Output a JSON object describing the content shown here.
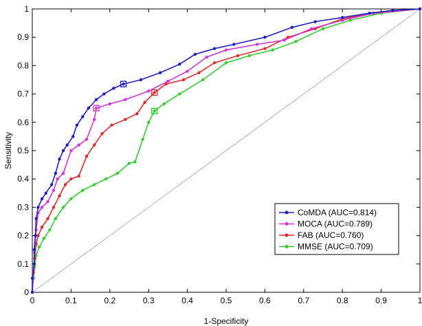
{
  "chart_data": {
    "type": "line",
    "title": "",
    "xlabel": "1-Specificity",
    "ylabel": "Sensitivity",
    "xlim": [
      0,
      1
    ],
    "ylim": [
      0,
      1
    ],
    "xticks": [
      0,
      0.1,
      0.2,
      0.3,
      0.4,
      0.5,
      0.6,
      0.7,
      0.8,
      0.9,
      1
    ],
    "yticks": [
      0,
      0.1,
      0.2,
      0.3,
      0.4,
      0.5,
      0.6,
      0.7,
      0.8,
      0.9,
      1
    ],
    "xtick_labels": [
      "0",
      "0.1",
      "0.2",
      "0.3",
      "0.4",
      "0.5",
      "0.6",
      "0.7",
      "0.8",
      "0.9",
      "1"
    ],
    "ytick_labels": [
      "0",
      "0.1",
      "0.2",
      "0.3",
      "0.4",
      "0.5",
      "0.6",
      "0.7",
      "0.8",
      "0.9",
      "1"
    ],
    "grid": false,
    "legend_position": "bottom-right",
    "reference_line": {
      "from": [
        0,
        0
      ],
      "to": [
        1,
        1
      ],
      "color": "#b0b0b0"
    },
    "series": [
      {
        "name": "CoMDA (AUC=0.814)",
        "color": "#1f1fbf",
        "highlight_point": [
          0.235,
          0.735
        ],
        "points": [
          [
            0,
            0
          ],
          [
            0,
            0.05
          ],
          [
            0.005,
            0.1
          ],
          [
            0.005,
            0.15
          ],
          [
            0.008,
            0.2
          ],
          [
            0.01,
            0.26
          ],
          [
            0.015,
            0.3
          ],
          [
            0.025,
            0.33
          ],
          [
            0.035,
            0.35
          ],
          [
            0.05,
            0.38
          ],
          [
            0.06,
            0.42
          ],
          [
            0.07,
            0.47
          ],
          [
            0.08,
            0.5
          ],
          [
            0.09,
            0.52
          ],
          [
            0.105,
            0.55
          ],
          [
            0.115,
            0.59
          ],
          [
            0.13,
            0.62
          ],
          [
            0.145,
            0.65
          ],
          [
            0.165,
            0.68
          ],
          [
            0.185,
            0.7
          ],
          [
            0.21,
            0.72
          ],
          [
            0.235,
            0.735
          ],
          [
            0.28,
            0.75
          ],
          [
            0.33,
            0.775
          ],
          [
            0.38,
            0.805
          ],
          [
            0.42,
            0.84
          ],
          [
            0.47,
            0.86
          ],
          [
            0.52,
            0.875
          ],
          [
            0.6,
            0.9
          ],
          [
            0.67,
            0.935
          ],
          [
            0.73,
            0.955
          ],
          [
            0.8,
            0.97
          ],
          [
            0.87,
            0.985
          ],
          [
            0.93,
            0.995
          ],
          [
            1,
            1
          ]
        ]
      },
      {
        "name": "MOCA (AUC=0.789)",
        "color": "#d633d6",
        "highlight_point": [
          0.165,
          0.65
        ],
        "points": [
          [
            0,
            0
          ],
          [
            0.003,
            0.08
          ],
          [
            0.006,
            0.14
          ],
          [
            0.01,
            0.22
          ],
          [
            0.015,
            0.28
          ],
          [
            0.025,
            0.3
          ],
          [
            0.04,
            0.32
          ],
          [
            0.055,
            0.36
          ],
          [
            0.065,
            0.4
          ],
          [
            0.08,
            0.42
          ],
          [
            0.1,
            0.5
          ],
          [
            0.12,
            0.52
          ],
          [
            0.14,
            0.54
          ],
          [
            0.16,
            0.61
          ],
          [
            0.165,
            0.65
          ],
          [
            0.2,
            0.665
          ],
          [
            0.24,
            0.68
          ],
          [
            0.3,
            0.71
          ],
          [
            0.35,
            0.745
          ],
          [
            0.4,
            0.78
          ],
          [
            0.45,
            0.83
          ],
          [
            0.5,
            0.855
          ],
          [
            0.58,
            0.875
          ],
          [
            0.65,
            0.89
          ],
          [
            0.72,
            0.93
          ],
          [
            0.8,
            0.96
          ],
          [
            0.88,
            0.985
          ],
          [
            1,
            1
          ]
        ]
      },
      {
        "name": "FAB (AUC=0.760)",
        "color": "#dd2a2a",
        "highlight_point": [
          0.315,
          0.705
        ],
        "points": [
          [
            0,
            0
          ],
          [
            0.003,
            0.07
          ],
          [
            0.006,
            0.12
          ],
          [
            0.01,
            0.17
          ],
          [
            0.015,
            0.2
          ],
          [
            0.025,
            0.23
          ],
          [
            0.04,
            0.26
          ],
          [
            0.055,
            0.3
          ],
          [
            0.07,
            0.34
          ],
          [
            0.085,
            0.38
          ],
          [
            0.1,
            0.4
          ],
          [
            0.12,
            0.41
          ],
          [
            0.14,
            0.48
          ],
          [
            0.16,
            0.52
          ],
          [
            0.18,
            0.56
          ],
          [
            0.205,
            0.59
          ],
          [
            0.24,
            0.61
          ],
          [
            0.27,
            0.63
          ],
          [
            0.29,
            0.67
          ],
          [
            0.315,
            0.705
          ],
          [
            0.345,
            0.735
          ],
          [
            0.39,
            0.75
          ],
          [
            0.43,
            0.775
          ],
          [
            0.47,
            0.81
          ],
          [
            0.53,
            0.835
          ],
          [
            0.6,
            0.86
          ],
          [
            0.66,
            0.9
          ],
          [
            0.73,
            0.93
          ],
          [
            0.8,
            0.965
          ],
          [
            0.88,
            0.985
          ],
          [
            1,
            1
          ]
        ]
      },
      {
        "name": "MMSE (AUC=0.709)",
        "color": "#33cc33",
        "highlight_point": [
          0.315,
          0.64
        ],
        "points": [
          [
            0,
            0
          ],
          [
            0.003,
            0.05
          ],
          [
            0.006,
            0.09
          ],
          [
            0.01,
            0.13
          ],
          [
            0.018,
            0.16
          ],
          [
            0.03,
            0.19
          ],
          [
            0.045,
            0.22
          ],
          [
            0.06,
            0.26
          ],
          [
            0.08,
            0.3
          ],
          [
            0.1,
            0.33
          ],
          [
            0.13,
            0.36
          ],
          [
            0.16,
            0.38
          ],
          [
            0.19,
            0.4
          ],
          [
            0.22,
            0.42
          ],
          [
            0.25,
            0.455
          ],
          [
            0.265,
            0.46
          ],
          [
            0.285,
            0.54
          ],
          [
            0.3,
            0.6
          ],
          [
            0.315,
            0.64
          ],
          [
            0.34,
            0.665
          ],
          [
            0.38,
            0.7
          ],
          [
            0.44,
            0.75
          ],
          [
            0.5,
            0.81
          ],
          [
            0.56,
            0.835
          ],
          [
            0.62,
            0.855
          ],
          [
            0.68,
            0.885
          ],
          [
            0.75,
            0.93
          ],
          [
            0.82,
            0.96
          ],
          [
            0.9,
            0.985
          ],
          [
            1,
            1
          ]
        ]
      }
    ]
  }
}
